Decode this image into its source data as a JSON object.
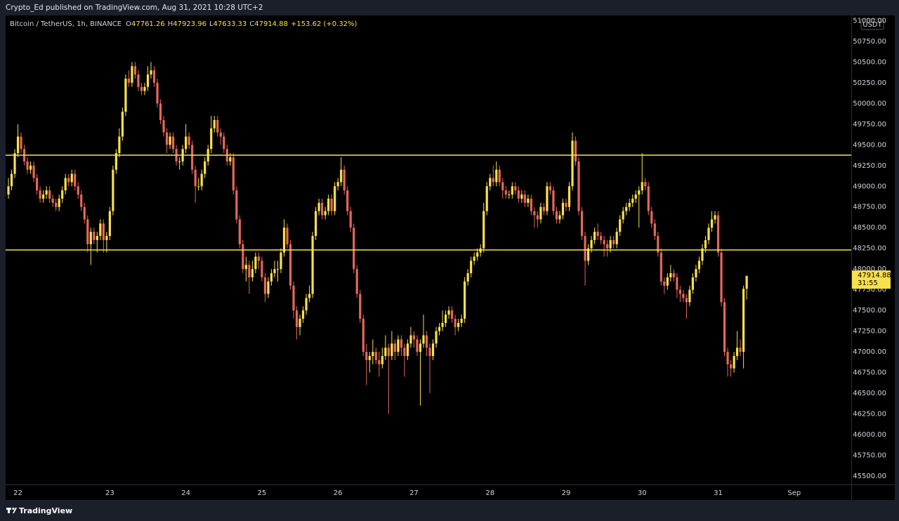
{
  "header": {
    "published": "Crypto_Ed published on TradingView.com, Aug 31, 2021 10:28 UTC+2"
  },
  "footer": {
    "brand": "TradingView"
  },
  "chart_data": {
    "type": "candlestick",
    "symbol": "Bitcoin / TetherUS, 1h, BINANCE",
    "ohlc_prefixes": [
      "O",
      "H",
      "L",
      "C"
    ],
    "change_label": "+153.62 (+0.32%)",
    "currency": "USDT",
    "countdown": "31:55",
    "up_color": "#f9e14b",
    "down_color": "#e5675d",
    "hline_color": "#f2e744",
    "hlines": [
      49375,
      48230
    ],
    "grid": false,
    "ylim": [
      45398,
      51063
    ],
    "yticks": [
      {
        "value": 45500,
        "label": "45500.00"
      },
      {
        "value": 45750,
        "label": "45750.00"
      },
      {
        "value": 46000,
        "label": "46000.00"
      },
      {
        "value": 46250,
        "label": "46250.00"
      },
      {
        "value": 46500,
        "label": "46500.00"
      },
      {
        "value": 46750,
        "label": "46750.00"
      },
      {
        "value": 47000,
        "label": "47000.00"
      },
      {
        "value": 47250,
        "label": "47250.00"
      },
      {
        "value": 47500,
        "label": "47500.00"
      },
      {
        "value": 47750,
        "label": "47750.00"
      },
      {
        "value": 48000,
        "label": "48000.00"
      },
      {
        "value": 48250,
        "label": "48250.00"
      },
      {
        "value": 48500,
        "label": "48500.00"
      },
      {
        "value": 48750,
        "label": "48750.00"
      },
      {
        "value": 49000,
        "label": "49000.00"
      },
      {
        "value": 49250,
        "label": "49250.00"
      },
      {
        "value": 49500,
        "label": "49500.00"
      },
      {
        "value": 49750,
        "label": "49750.00"
      },
      {
        "value": 50000,
        "label": "50000.00"
      },
      {
        "value": 50250,
        "label": "50250.00"
      },
      {
        "value": 50500,
        "label": "50500.00"
      },
      {
        "value": 50750,
        "label": "50750.00"
      },
      {
        "value": 51000,
        "label": "51000.00"
      }
    ],
    "categories": [
      null,
      null,
      null,
      "22",
      null,
      null,
      null,
      null,
      null,
      null,
      null,
      null,
      null,
      null,
      null,
      null,
      null,
      null,
      null,
      null,
      null,
      null,
      null,
      null,
      null,
      null,
      null,
      null,
      null,
      null,
      null,
      null,
      "23",
      null,
      null,
      null,
      null,
      null,
      null,
      null,
      null,
      null,
      null,
      null,
      null,
      null,
      null,
      null,
      null,
      null,
      null,
      null,
      null,
      null,
      null,
      null,
      "24",
      null,
      null,
      null,
      null,
      null,
      null,
      null,
      null,
      null,
      null,
      null,
      null,
      null,
      null,
      null,
      null,
      null,
      null,
      null,
      null,
      null,
      null,
      null,
      "25",
      null,
      null,
      null,
      null,
      null,
      null,
      null,
      null,
      null,
      null,
      null,
      null,
      null,
      null,
      null,
      null,
      null,
      null,
      null,
      null,
      null,
      null,
      null,
      "26",
      null,
      null,
      null,
      null,
      null,
      null,
      null,
      null,
      null,
      null,
      null,
      null,
      null,
      null,
      null,
      null,
      null,
      null,
      null,
      null,
      null,
      null,
      null,
      "27",
      null,
      null,
      null,
      null,
      null,
      null,
      null,
      null,
      null,
      null,
      null,
      null,
      null,
      null,
      null,
      null,
      null,
      null,
      null,
      null,
      null,
      null,
      null,
      "28",
      null,
      null,
      null,
      null,
      null,
      null,
      null,
      null,
      null,
      null,
      null,
      null,
      null,
      null,
      null,
      null,
      null,
      null,
      null,
      null,
      null,
      null,
      null,
      "29",
      null,
      null,
      null,
      null,
      null,
      null,
      null,
      null,
      null,
      null,
      null,
      null,
      null,
      null,
      null,
      null,
      null,
      null,
      null,
      null,
      null,
      null,
      null,
      "30",
      null,
      null,
      null,
      null,
      null,
      null,
      null,
      null,
      null,
      null,
      null,
      null,
      null,
      null,
      null,
      null,
      null,
      null,
      null,
      null,
      null,
      null,
      null,
      "31",
      null,
      null,
      null,
      null,
      null,
      null,
      null,
      null,
      null,
      null,
      null,
      null,
      null,
      null,
      null,
      null,
      null,
      null,
      null,
      null,
      null,
      null,
      null,
      "Sep",
      null,
      null,
      null,
      null,
      null,
      null,
      null,
      null,
      null,
      null,
      null,
      null,
      null,
      null,
      null,
      null,
      null
    ],
    "open": [
      48900,
      49000,
      49150,
      49400,
      49600,
      49450,
      49300,
      49200,
      49250,
      49100,
      48950,
      48850,
      48900,
      48950,
      48850,
      48800,
      48750,
      48850,
      48950,
      49100,
      49050,
      49150,
      49000,
      48900,
      48750,
      48600,
      48300,
      48450,
      48350,
      48400,
      48550,
      48350,
      48400,
      48700,
      49200,
      49400,
      49600,
      49900,
      50300,
      50250,
      50450,
      50350,
      50200,
      50150,
      50200,
      50350,
      50400,
      50250,
      50000,
      49800,
      49650,
      49500,
      49600,
      49450,
      49300,
      49300,
      49450,
      49600,
      49500,
      49200,
      49000,
      49000,
      49150,
      49300,
      49450,
      49700,
      49800,
      49650,
      49600,
      49450,
      49300,
      49350,
      48950,
      48600,
      48300,
      48000,
      48050,
      47900,
      48000,
      48150,
      48100,
      47900,
      47700,
      47850,
      47950,
      48000,
      48000,
      48200,
      48500,
      48300,
      47800,
      47500,
      47300,
      47400,
      47500,
      47650,
      47700,
      48400,
      48700,
      48800,
      48650,
      48700,
      48850,
      48700,
      49000,
      49050,
      49200,
      48950,
      48700,
      48500,
      48000,
      47700,
      47400,
      47000,
      46900,
      46950,
      47000,
      46900,
      46850,
      46950,
      47050,
      46950,
      47100,
      47000,
      47150,
      47050,
      46950,
      47100,
      47200,
      47150,
      47000,
      47100,
      47200,
      47050,
      46950,
      47100,
      47250,
      47300,
      47350,
      47450,
      47500,
      47400,
      47300,
      47350,
      47400,
      47850,
      47950,
      48100,
      48150,
      48200,
      48250,
      48700,
      49000,
      49100,
      49050,
      49200,
      49050,
      48950,
      48900,
      48900,
      49000,
      48950,
      48850,
      48900,
      48800,
      48850,
      48700,
      48650,
      48600,
      48750,
      48700,
      49000,
      48950,
      48700,
      48600,
      48650,
      48800,
      48750,
      49000,
      49550,
      49300,
      48700,
      48400,
      48100,
      48250,
      48350,
      48450,
      48400,
      48350,
      48300,
      48250,
      48350,
      48300,
      48450,
      48600,
      48700,
      48750,
      48800,
      48850,
      48900,
      48950,
      49050,
      49000,
      48700,
      48550,
      48400,
      48200,
      47850,
      47800,
      47900,
      47950,
      47900,
      47750,
      47700,
      47650,
      47600,
      47750,
      47900,
      48000,
      48100,
      48250,
      48350,
      48500,
      48600,
      48650,
      48200,
      47600,
      47000,
      46850,
      46800,
      46950,
      47050,
      47000,
      47761.26,
      null,
      null,
      null,
      null,
      null,
      null,
      null,
      null,
      null,
      null,
      null,
      null,
      null,
      null,
      null,
      null,
      null,
      null,
      null,
      null,
      null,
      null,
      null,
      null,
      null,
      null,
      null,
      null,
      null,
      null,
      null,
      null
    ],
    "high": [
      49100,
      49200,
      49450,
      49750,
      49650,
      49500,
      49350,
      49300,
      49300,
      49150,
      49000,
      48950,
      49000,
      49000,
      48900,
      48850,
      48900,
      49000,
      49150,
      49150,
      49200,
      49200,
      49050,
      48950,
      48800,
      48650,
      48500,
      48500,
      48450,
      48600,
      48600,
      48450,
      48750,
      49250,
      49450,
      49700,
      49950,
      50350,
      50400,
      50500,
      50500,
      50400,
      50250,
      50250,
      50450,
      50500,
      50450,
      50300,
      50050,
      49850,
      49700,
      49650,
      49650,
      49500,
      49350,
      49500,
      49750,
      49650,
      49550,
      49250,
      49100,
      49200,
      49350,
      49500,
      49850,
      49850,
      49850,
      49700,
      49650,
      49500,
      49400,
      49400,
      49000,
      48650,
      48350,
      48150,
      48100,
      48100,
      48200,
      48200,
      48150,
      47950,
      47900,
      48000,
      48100,
      48100,
      48250,
      48600,
      48550,
      48350,
      47850,
      47550,
      47450,
      47550,
      47700,
      47800,
      48450,
      48750,
      48850,
      48850,
      48750,
      48900,
      48900,
      49050,
      49100,
      49350,
      49250,
      49000,
      48750,
      48550,
      48050,
      47750,
      47450,
      47100,
      47000,
      47150,
      47050,
      47000,
      47050,
      47200,
      47100,
      47250,
      47150,
      47200,
      47200,
      47100,
      47150,
      47300,
      47250,
      47200,
      47150,
      47450,
      47250,
      47100,
      47150,
      47300,
      47350,
      47500,
      47500,
      47550,
      47550,
      47450,
      47400,
      47450,
      47900,
      48000,
      48150,
      48200,
      48250,
      48300,
      48800,
      49050,
      49150,
      49250,
      49300,
      49250,
      49100,
      49000,
      48950,
      49050,
      49050,
      49000,
      48950,
      48950,
      48900,
      48900,
      48750,
      48700,
      48800,
      48800,
      49050,
      49050,
      49000,
      48750,
      48700,
      48850,
      48850,
      49050,
      49650,
      49600,
      49350,
      48750,
      48450,
      48300,
      48400,
      48500,
      48550,
      48450,
      48400,
      48350,
      48400,
      48400,
      48500,
      48650,
      48750,
      48800,
      48850,
      48900,
      48950,
      49000,
      49400,
      49100,
      49050,
      48750,
      48600,
      48450,
      48250,
      47900,
      47950,
      48050,
      48000,
      47950,
      47800,
      47750,
      47700,
      47800,
      47950,
      48050,
      48150,
      48300,
      48400,
      48550,
      48700,
      48700,
      48700,
      48250,
      47650,
      47050,
      46900,
      47000,
      47250,
      47150,
      47800,
      47923.96,
      null,
      null,
      null,
      null,
      null,
      null,
      null,
      null,
      null,
      null,
      null,
      null,
      null,
      null,
      null,
      null,
      null,
      null,
      null,
      null,
      null,
      null,
      null,
      null,
      null,
      null,
      null,
      null,
      null,
      null,
      null,
      null
    ],
    "low": [
      48850,
      48950,
      49100,
      49350,
      49400,
      49250,
      49150,
      49150,
      49050,
      48900,
      48800,
      48800,
      48850,
      48800,
      48750,
      48700,
      48700,
      48800,
      48900,
      49000,
      49000,
      48950,
      48850,
      48700,
      48550,
      48200,
      48050,
      48300,
      48200,
      48350,
      48200,
      48200,
      48350,
      48650,
      49150,
      49350,
      49550,
      49850,
      50200,
      50200,
      50300,
      50150,
      50100,
      50100,
      50150,
      50300,
      50200,
      49950,
      49750,
      49600,
      49400,
      49450,
      49400,
      49250,
      49200,
      49250,
      49400,
      49450,
      49150,
      48800,
      48950,
      48950,
      49100,
      49250,
      49400,
      49650,
      49600,
      49500,
      49400,
      49250,
      49250,
      48900,
      48550,
      48250,
      47950,
      47850,
      47700,
      47850,
      47950,
      48000,
      47850,
      47600,
      47650,
      47800,
      47900,
      47850,
      47950,
      48150,
      48250,
      47750,
      47400,
      47150,
      47200,
      47350,
      47450,
      47600,
      47650,
      48350,
      48650,
      48600,
      48600,
      48650,
      48650,
      48650,
      48950,
      49000,
      48900,
      48650,
      48450,
      47950,
      47650,
      47350,
      46950,
      46600,
      46750,
      46850,
      46850,
      46700,
      46800,
      46900,
      46250,
      46900,
      46900,
      46950,
      46950,
      46700,
      46900,
      47050,
      47050,
      46950,
      46350,
      47050,
      46950,
      46500,
      46900,
      47050,
      47200,
      47250,
      47300,
      47400,
      47350,
      47200,
      47250,
      47300,
      47350,
      47800,
      47900,
      48050,
      48100,
      48150,
      48200,
      48650,
      48950,
      49000,
      49000,
      49000,
      48850,
      48850,
      48850,
      48850,
      48900,
      48800,
      48800,
      48750,
      48750,
      48650,
      48500,
      48500,
      48550,
      48650,
      48650,
      48900,
      48650,
      48550,
      48550,
      48600,
      48700,
      48700,
      48950,
      49250,
      48650,
      48350,
      47800,
      48050,
      48200,
      48300,
      48350,
      48300,
      48150,
      48150,
      48200,
      48250,
      48250,
      48400,
      48550,
      48650,
      48700,
      48750,
      48800,
      48500,
      48900,
      48950,
      48650,
      48500,
      48350,
      48150,
      47800,
      47700,
      47750,
      47850,
      47850,
      47650,
      47600,
      47600,
      47400,
      47550,
      47700,
      47850,
      47950,
      48050,
      48200,
      48300,
      48450,
      48550,
      48150,
      47550,
      46950,
      46700,
      46700,
      46750,
      46900,
      46950,
      46800,
      47633.33,
      null,
      null,
      null,
      null,
      null,
      null,
      null,
      null,
      null,
      null,
      null,
      null,
      null,
      null,
      null,
      null,
      null,
      null,
      null,
      null,
      null,
      null,
      null,
      null,
      null,
      null,
      null,
      null,
      null,
      null,
      null,
      null
    ],
    "close": [
      49000,
      49150,
      49400,
      49600,
      49450,
      49300,
      49200,
      49250,
      49100,
      48950,
      48850,
      48900,
      48950,
      48850,
      48800,
      48750,
      48850,
      48950,
      49100,
      49050,
      49150,
      49000,
      48900,
      48750,
      48600,
      48300,
      48450,
      48350,
      48400,
      48550,
      48350,
      48400,
      48700,
      49200,
      49400,
      49600,
      49900,
      50300,
      50250,
      50450,
      50350,
      50200,
      50150,
      50200,
      50350,
      50400,
      50250,
      50000,
      49800,
      49650,
      49500,
      49600,
      49450,
      49300,
      49300,
      49450,
      49600,
      49500,
      49200,
      49000,
      49000,
      49150,
      49300,
      49450,
      49700,
      49800,
      49650,
      49600,
      49450,
      49300,
      49350,
      48950,
      48600,
      48300,
      48000,
      48050,
      47900,
      48000,
      48150,
      48100,
      47900,
      47700,
      47850,
      47950,
      48000,
      48000,
      48200,
      48500,
      48300,
      47800,
      47500,
      47300,
      47400,
      47500,
      47650,
      47700,
      48400,
      48700,
      48800,
      48650,
      48700,
      48850,
      48700,
      49000,
      49050,
      49200,
      48950,
      48700,
      48500,
      48000,
      47700,
      47400,
      47000,
      46900,
      46950,
      47000,
      46900,
      46850,
      46950,
      47050,
      46950,
      47100,
      47000,
      47150,
      47050,
      46950,
      47100,
      47200,
      47150,
      47000,
      47100,
      47200,
      47050,
      46950,
      47100,
      47250,
      47300,
      47350,
      47450,
      47500,
      47400,
      47300,
      47350,
      47400,
      47850,
      47950,
      48100,
      48150,
      48200,
      48250,
      48700,
      49000,
      49100,
      49050,
      49200,
      49050,
      48950,
      48900,
      48900,
      49000,
      48950,
      48850,
      48900,
      48800,
      48850,
      48700,
      48650,
      48600,
      48750,
      48700,
      49000,
      48950,
      48700,
      48600,
      48650,
      48800,
      48750,
      49000,
      49550,
      49300,
      48700,
      48400,
      48100,
      48250,
      48350,
      48450,
      48400,
      48350,
      48300,
      48250,
      48350,
      48300,
      48450,
      48600,
      48700,
      48750,
      48800,
      48850,
      48900,
      48950,
      49050,
      49000,
      48700,
      48550,
      48400,
      48200,
      47850,
      47800,
      47900,
      47950,
      47900,
      47750,
      47700,
      47650,
      47600,
      47750,
      47900,
      48000,
      48100,
      48250,
      48350,
      48500,
      48600,
      48650,
      48200,
      47600,
      47000,
      46850,
      46800,
      46950,
      47050,
      47000,
      47761.26,
      47914.88,
      null,
      null,
      null,
      null,
      null,
      null,
      null,
      null,
      null,
      null,
      null,
      null,
      null,
      null,
      null,
      null,
      null,
      null,
      null,
      null,
      null,
      null,
      null,
      null,
      null,
      null,
      null,
      null,
      null,
      null,
      null,
      null
    ]
  }
}
